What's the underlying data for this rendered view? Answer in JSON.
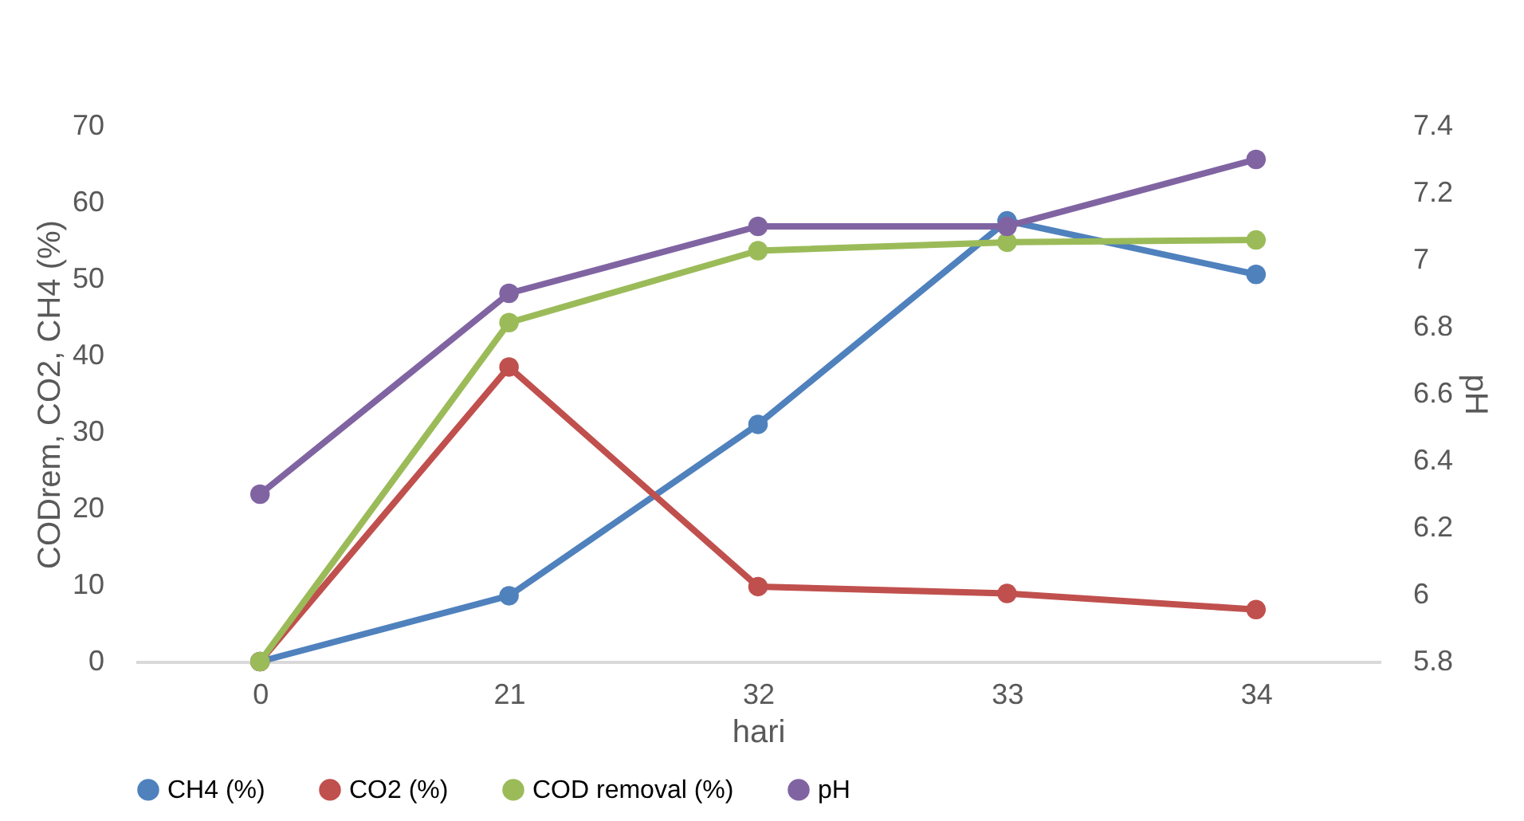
{
  "chart_data": {
    "type": "line",
    "xlabel": "hari",
    "ylabel": "CODrem, CO2, CH4 (%)",
    "y2label": "pH",
    "categories": [
      "0",
      "21",
      "32",
      "33",
      "34"
    ],
    "series": [
      {
        "name": "CH4 (%)",
        "color": "#4f81bd",
        "values": [
          0,
          8.6,
          31,
          57.6,
          50.6
        ]
      },
      {
        "name": "CO2 (%)",
        "color": "#c0504d",
        "values": [
          0,
          38.5,
          9.8,
          8.9,
          6.8
        ]
      },
      {
        "name": "COD removal (%)",
        "color": "#9bbb59",
        "values": [
          0,
          44.3,
          53.7,
          54.8,
          55.1
        ]
      },
      {
        "name": "pH",
        "color": "#8064a2",
        "axis": "y2",
        "values": [
          6.3,
          6.9,
          7.1,
          7.1,
          7.3
        ]
      }
    ],
    "ylim": [
      0,
      70
    ],
    "yticks": [
      0,
      10,
      20,
      30,
      40,
      50,
      60,
      70
    ],
    "y2lim": [
      5.8,
      7.4
    ],
    "y2ticks": [
      5.8,
      6,
      6.2,
      6.4,
      6.6,
      6.8,
      7,
      7.2,
      7.4
    ],
    "grid": false,
    "legend": "bottom",
    "marker": "circle",
    "line_style": "solid"
  }
}
